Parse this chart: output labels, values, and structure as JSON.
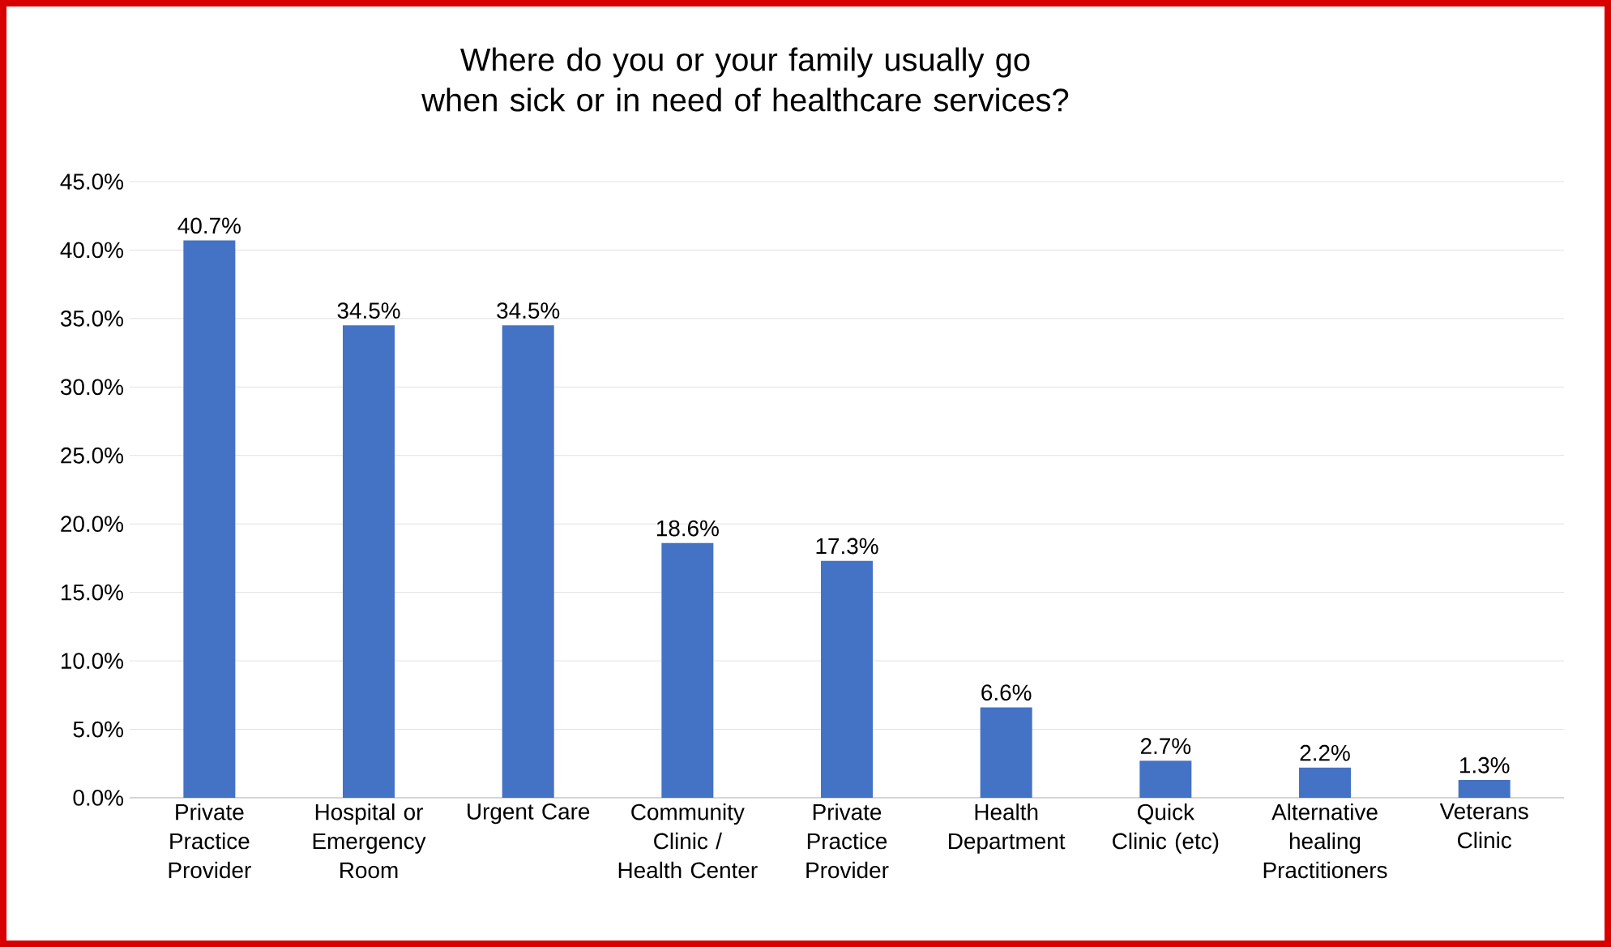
{
  "chart_data": {
    "type": "bar",
    "title": "Where do you or your family usually go when sick or in need of healthcare services?",
    "categories": [
      "Private Practice Provider",
      "Hospital or Emergency Room",
      "Urgent Care",
      "Community Clinic / Health Center",
      "Private Practice Provider",
      "Health Department",
      "Quick Clinic (etc)",
      "Alternative healing Practitioners",
      "Veterans Clinic"
    ],
    "values": [
      40.7,
      34.5,
      34.5,
      18.6,
      17.3,
      6.6,
      2.7,
      2.2,
      1.3
    ],
    "value_labels": [
      "40.7%",
      "34.5%",
      "34.5%",
      "18.6%",
      "17.3%",
      "6.6%",
      "2.7%",
      "2.2%",
      "1.3%"
    ],
    "color": "#4472c4",
    "ylim": [
      0,
      45
    ],
    "yticks": [
      {
        "value": 0,
        "label": "0.0%"
      },
      {
        "value": 5,
        "label": "5.0%"
      },
      {
        "value": 10,
        "label": "10.0%"
      },
      {
        "value": 15,
        "label": "15.0%"
      },
      {
        "value": 20,
        "label": "20.0%"
      },
      {
        "value": 25,
        "label": "25.0%"
      },
      {
        "value": 30,
        "label": "30.0%"
      },
      {
        "value": 35,
        "label": "35.0%"
      },
      {
        "value": 40,
        "label": "40.0%"
      },
      {
        "value": 45,
        "label": "45.0%"
      }
    ],
    "grid": "y"
  }
}
